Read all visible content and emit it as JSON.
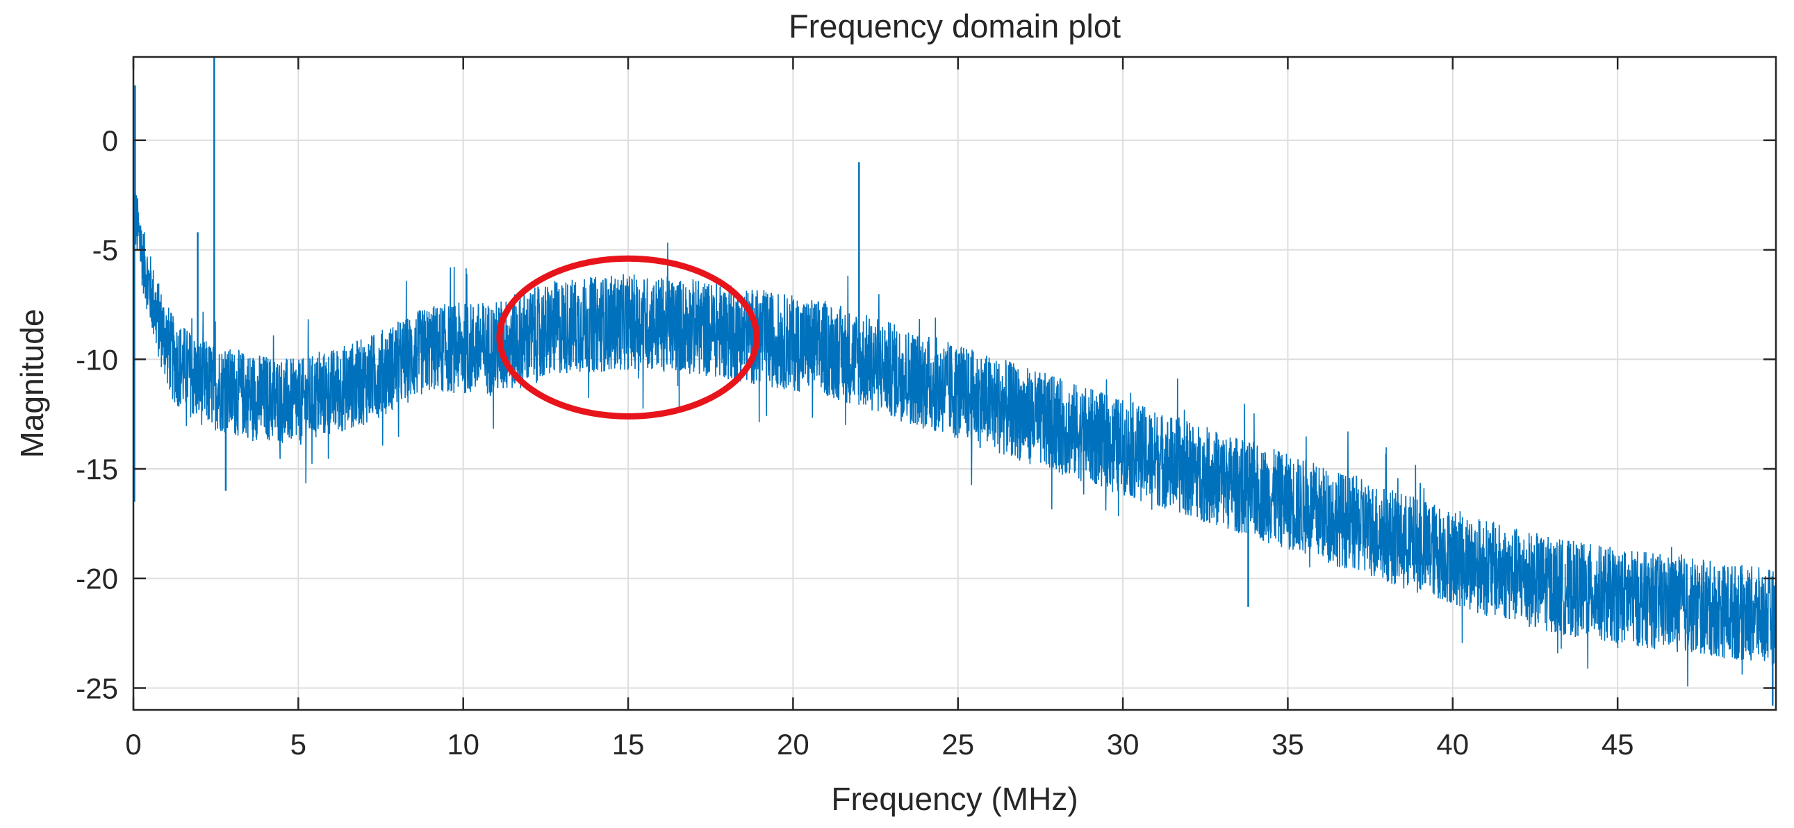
{
  "chart_data": {
    "type": "line",
    "title": "Frequency domain plot",
    "xlabel": "Frequency (MHz)",
    "ylabel": "Magnitude",
    "xlim": [
      0,
      49.8
    ],
    "ylim": [
      -26,
      3.8
    ],
    "xticks": [
      0,
      5,
      10,
      15,
      20,
      25,
      30,
      35,
      40,
      45
    ],
    "yticks": [
      -25,
      -20,
      -15,
      -10,
      -5,
      0
    ],
    "grid": true,
    "box": true,
    "series": [
      {
        "color": "#0072BD",
        "envelope": {
          "x": [
            0,
            0.3,
            0.7,
            1.2,
            2,
            3,
            5,
            7,
            9,
            11,
            13,
            15,
            17,
            19,
            21,
            23,
            25,
            27,
            29,
            31,
            33,
            35,
            37,
            39,
            41,
            43,
            45,
            47,
            49.8
          ],
          "center": [
            -3,
            -5.5,
            -8,
            -10,
            -11,
            -11.5,
            -12,
            -11,
            -9.5,
            -9.5,
            -8.5,
            -8.3,
            -8.5,
            -9,
            -9.5,
            -10.5,
            -11.5,
            -12.5,
            -13.5,
            -14.5,
            -15.5,
            -16.5,
            -17.5,
            -18.5,
            -19.5,
            -20.3,
            -20.8,
            -21.2,
            -21.8
          ],
          "spread": [
            1.5,
            1.5,
            1.8,
            2,
            2,
            2,
            2,
            2,
            2,
            2.2,
            2.2,
            2.2,
            2.2,
            2.2,
            2.2,
            2.2,
            2.2,
            2.2,
            2.2,
            2.2,
            2.2,
            2.2,
            2.2,
            2.2,
            2.2,
            2.2,
            2.2,
            2.2,
            2.2
          ]
        },
        "spikes": [
          {
            "x": 2.45,
            "y": 3.8
          },
          {
            "x": 1.95,
            "y": -4.2
          },
          {
            "x": 22.0,
            "y": -1.0
          },
          {
            "x": 0.05,
            "y": 2.5
          }
        ],
        "dips": [
          {
            "x": 0.03,
            "y": -16.5
          },
          {
            "x": 2.8,
            "y": -16.0
          },
          {
            "x": 33.8,
            "y": -21.3
          },
          {
            "x": 49.7,
            "y": -25.8
          }
        ]
      }
    ],
    "annotation": {
      "shape": "ellipse",
      "color": "#E8141B",
      "center_x": 15.0,
      "center_y": -9.0,
      "radius_x": 3.9,
      "radius_y": 3.6
    }
  }
}
